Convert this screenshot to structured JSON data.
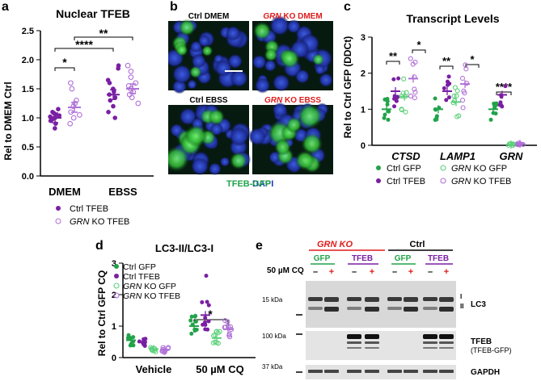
{
  "panel_letters": {
    "a": "a",
    "b": "b",
    "c": "c",
    "d": "d",
    "e": "e"
  },
  "colors": {
    "green": "#21a34a",
    "purple": "#7a1fa2",
    "red": "#e01b1b",
    "blue": "#2030c8",
    "black": "#000000"
  },
  "panel_a": {
    "title": "Nuclear TFEB",
    "ylabel": "Rel to DMEM Ctrl",
    "yticks": [
      "0.0",
      "0.5",
      "1.0",
      "1.5",
      "2.0",
      "2.5"
    ],
    "categories": [
      "DMEM",
      "EBSS"
    ],
    "legend": [
      "Ctrl TFEB",
      "GRN KO TFEB"
    ],
    "legend_italic_prefix": "GRN",
    "legend_suffix": " KO TFEB",
    "sig": [
      "*",
      "****",
      "**"
    ]
  },
  "panel_b": {
    "labels": [
      {
        "text": "Ctrl DMEM",
        "italic": "",
        "color": "#000"
      },
      {
        "text": " KO DMEM",
        "italic": "GRN",
        "color": "#e01b1b"
      },
      {
        "text": "Ctrl EBSS",
        "italic": "",
        "color": "#000"
      },
      {
        "text": " KO EBSS",
        "italic": "GRN",
        "color": "#e01b1b"
      }
    ],
    "stain_gfp": "TFEB-GFP",
    "stain_dapi": "DAPI"
  },
  "panel_c": {
    "title": "Transcript Levels",
    "ylabel": "Rel to Ctrl GFP (DDCt)",
    "yticks": [
      "0",
      "1",
      "2",
      "3"
    ],
    "genes": [
      "CTSD",
      "LAMP1",
      "GRN"
    ],
    "legend": [
      "Ctrl GFP",
      "Ctrl TFEB",
      "GRN KO GFP",
      "GRN KO TFEB"
    ],
    "sig": [
      "**",
      "*",
      "**",
      "*",
      "****"
    ]
  },
  "panel_d": {
    "title": "LC3-II/LC3-I",
    "ylabel": "Rel to Ctrl GFP CQ",
    "yticks": [
      "0",
      "1",
      "2",
      "3"
    ],
    "categories": [
      "Vehicle",
      "50 µM CQ"
    ],
    "legend": [
      "Ctrl GFP",
      "Ctrl TFEB",
      "GRN KO GFP",
      "GRN KO TFEB"
    ],
    "sig": [
      "*"
    ]
  },
  "panel_e": {
    "group1": "GRN KO",
    "group2": "Ctrl",
    "sub": [
      "GFP",
      "TFEB",
      "GFP",
      "TFEB"
    ],
    "cq_label": "50 µM CQ",
    "lane_signs": [
      "–",
      "+",
      "–",
      "+",
      "–",
      "+",
      "–",
      "+"
    ],
    "mw": [
      "15 kDa",
      "100 kDa",
      "37 kDa"
    ],
    "band_labels": [
      "LC3",
      "TFEB",
      "(TFEB-GFP)",
      "GAPDH"
    ],
    "lc3_marks": [
      "I",
      "II"
    ]
  },
  "chart_data": [
    {
      "type": "scatter",
      "title": "Nuclear TFEB",
      "ylabel": "Rel to DMEM Ctrl",
      "ylim": [
        0,
        2.5
      ],
      "categories": [
        "DMEM",
        "EBSS"
      ],
      "series": [
        {
          "name": "Ctrl TFEB",
          "means": [
            1.0,
            1.4
          ],
          "points": [
            [
              0.82,
              0.9,
              0.95,
              0.97,
              1.0,
              1.0,
              1.02,
              1.04,
              1.05,
              1.08,
              1.1,
              1.15
            ],
            [
              1.0,
              1.1,
              1.2,
              1.3,
              1.35,
              1.4,
              1.45,
              1.5,
              1.6,
              1.65,
              1.85,
              1.9
            ]
          ]
        },
        {
          "name": "GRN KO TFEB",
          "means": [
            1.18,
            1.5
          ],
          "points": [
            [
              0.9,
              1.0,
              1.05,
              1.1,
              1.2,
              1.25,
              1.3,
              1.5,
              1.6
            ],
            [
              1.25,
              1.35,
              1.4,
              1.45,
              1.5,
              1.55,
              1.6,
              1.7,
              1.8,
              1.9
            ]
          ]
        }
      ]
    },
    {
      "type": "scatter",
      "title": "Transcript Levels",
      "ylabel": "Rel to Ctrl GFP (DDCt)",
      "ylim": [
        0,
        3
      ],
      "categories": [
        "CTSD",
        "LAMP1",
        "GRN"
      ],
      "series": [
        {
          "name": "Ctrl GFP",
          "means": [
            1.0,
            1.0,
            1.0
          ]
        },
        {
          "name": "Ctrl TFEB",
          "means": [
            1.5,
            1.5,
            1.4
          ]
        },
        {
          "name": "GRN KO GFP",
          "means": [
            1.35,
            1.2,
            0.02
          ]
        },
        {
          "name": "GRN KO TFEB",
          "means": [
            1.85,
            1.7,
            0.04
          ]
        }
      ]
    },
    {
      "type": "scatter",
      "title": "LC3-II/LC3-I",
      "ylabel": "Rel to Ctrl GFP CQ",
      "ylim": [
        0,
        3
      ],
      "categories": [
        "Vehicle",
        "50 µM CQ"
      ],
      "series": [
        {
          "name": "Ctrl GFP",
          "means": [
            0.55,
            1.0
          ]
        },
        {
          "name": "Ctrl TFEB",
          "means": [
            0.5,
            1.35
          ]
        },
        {
          "name": "GRN KO GFP",
          "means": [
            0.27,
            0.62
          ]
        },
        {
          "name": "GRN KO TFEB",
          "means": [
            0.25,
            0.9
          ]
        }
      ]
    }
  ]
}
